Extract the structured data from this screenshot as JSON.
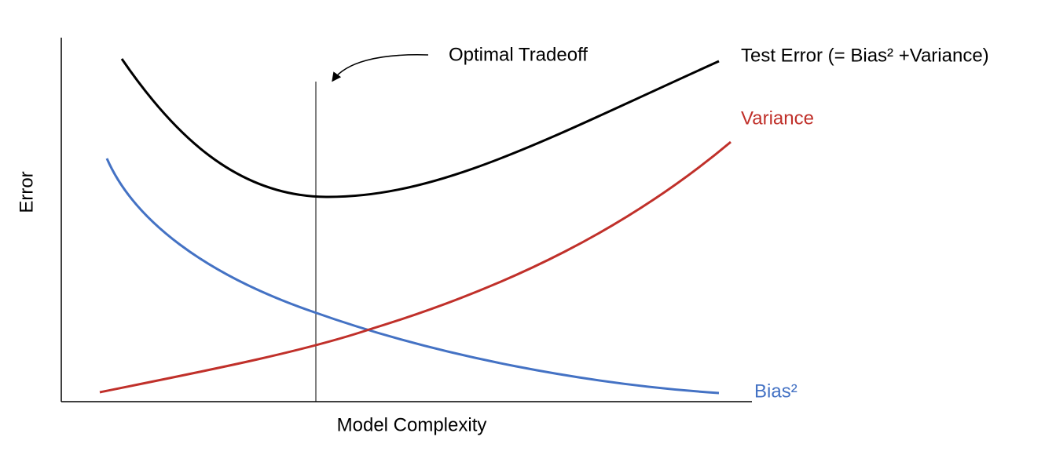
{
  "axes": {
    "y_label": "Error",
    "x_label": "Model Complexity"
  },
  "annotations": {
    "optimal": "Optimal Tradeoff"
  },
  "curves": {
    "test_error": "Test Error (= Bias² +Variance)",
    "variance": "Variance",
    "bias": "Bias²"
  }
}
